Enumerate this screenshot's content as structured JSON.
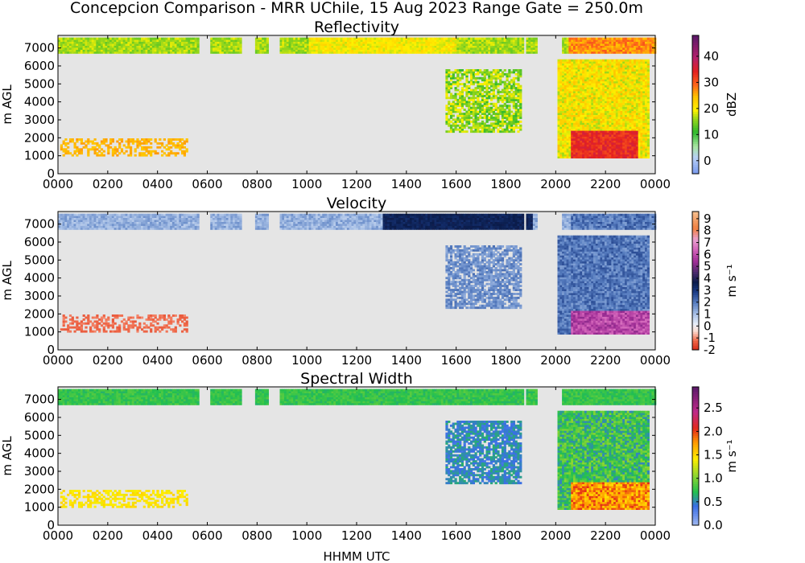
{
  "figure": {
    "suptitle": "Concepcion Comparison - MRR UChile, 15 Aug 2023 Range Gate = 250.0m",
    "xlabel": "HHMM UTC"
  },
  "colors": {
    "axes_background": "#e5e5e5",
    "frame": "#000000"
  },
  "chart_data": [
    {
      "type": "heatmap",
      "title": "Reflectivity",
      "xlabel": "",
      "ylabel": "m AGL",
      "x_ticks": [
        "0000",
        "0200",
        "0400",
        "0600",
        "0800",
        "1000",
        "1200",
        "1400",
        "1600",
        "1800",
        "2000",
        "2200",
        "0000"
      ],
      "y_ticks": [
        0,
        1000,
        2000,
        3000,
        4000,
        5000,
        6000,
        7000
      ],
      "xlim_hours": [
        0,
        24
      ],
      "ylim": [
        0,
        7700
      ],
      "colorbar": {
        "label": "dBZ",
        "range": [
          -5,
          48
        ],
        "ticks": [
          "0",
          "10",
          "20",
          "30",
          "40"
        ],
        "tick_values": [
          0,
          10,
          20,
          30,
          40
        ]
      }
    },
    {
      "type": "heatmap",
      "title": "Velocity",
      "xlabel": "",
      "ylabel": "m AGL",
      "x_ticks": [
        "0000",
        "0200",
        "0400",
        "0600",
        "0800",
        "1000",
        "1200",
        "1400",
        "1600",
        "1800",
        "2000",
        "2200",
        "0000"
      ],
      "y_ticks": [
        0,
        1000,
        2000,
        3000,
        4000,
        5000,
        6000,
        7000
      ],
      "xlim_hours": [
        0,
        24
      ],
      "ylim": [
        0,
        7700
      ],
      "colorbar": {
        "label": "m s⁻¹",
        "range": [
          -2,
          9.6
        ],
        "ticks": [
          "-2",
          "-1",
          "0",
          "1",
          "2",
          "3",
          "4",
          "5",
          "6",
          "7",
          "8",
          "9"
        ],
        "tick_values": [
          -2,
          -1,
          0,
          1,
          2,
          3,
          4,
          5,
          6,
          7,
          8,
          9
        ]
      }
    },
    {
      "type": "heatmap",
      "title": "Spectral Width",
      "xlabel": "HHMM UTC",
      "ylabel": "m AGL",
      "x_ticks": [
        "0000",
        "0200",
        "0400",
        "0600",
        "0800",
        "1000",
        "1200",
        "1400",
        "1600",
        "1800",
        "2000",
        "2200",
        "0000"
      ],
      "y_ticks": [
        0,
        1000,
        2000,
        3000,
        4000,
        5000,
        6000,
        7000
      ],
      "xlim_hours": [
        0,
        24
      ],
      "ylim": [
        0,
        7700
      ],
      "colorbar": {
        "label": "m s⁻¹",
        "range": [
          0,
          2.95
        ],
        "ticks": [
          "0.0",
          "0.5",
          "1.0",
          "1.5",
          "2.0",
          "2.5"
        ],
        "tick_values": [
          0,
          0.5,
          1.0,
          1.5,
          2.0,
          2.5
        ]
      }
    }
  ]
}
